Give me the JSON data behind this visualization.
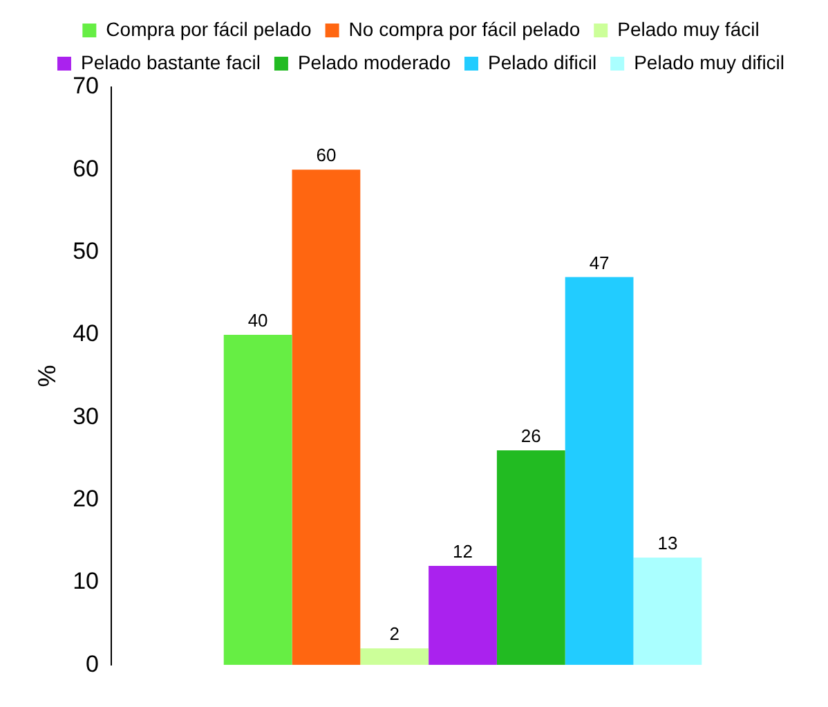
{
  "chart_data": {
    "type": "bar",
    "ylabel": "%",
    "categories": [
      null
    ],
    "series": [
      {
        "name": "Compra por fácil pelado",
        "color": "#66ee44",
        "values": [
          40
        ]
      },
      {
        "name": "No compra por fácil pelado",
        "color": "#ff6611",
        "values": [
          60
        ]
      },
      {
        "name": "Pelado muy fácil",
        "color": "#ccff99",
        "values": [
          2
        ]
      },
      {
        "name": "Pelado bastante facil",
        "color": "#aa22ee",
        "values": [
          12
        ]
      },
      {
        "name": "Pelado moderado",
        "color": "#22bb22",
        "values": [
          26
        ]
      },
      {
        "name": "Pelado dificil",
        "color": "#22ccff",
        "values": [
          47
        ]
      },
      {
        "name": "Pelado muy dificil",
        "color": "#aaffff",
        "values": [
          13
        ]
      }
    ],
    "ylim": [
      0,
      70
    ],
    "yticks": [
      0,
      10,
      20,
      30,
      40,
      50,
      60,
      70
    ],
    "grid": false,
    "legend": "top",
    "data_labels": true
  }
}
